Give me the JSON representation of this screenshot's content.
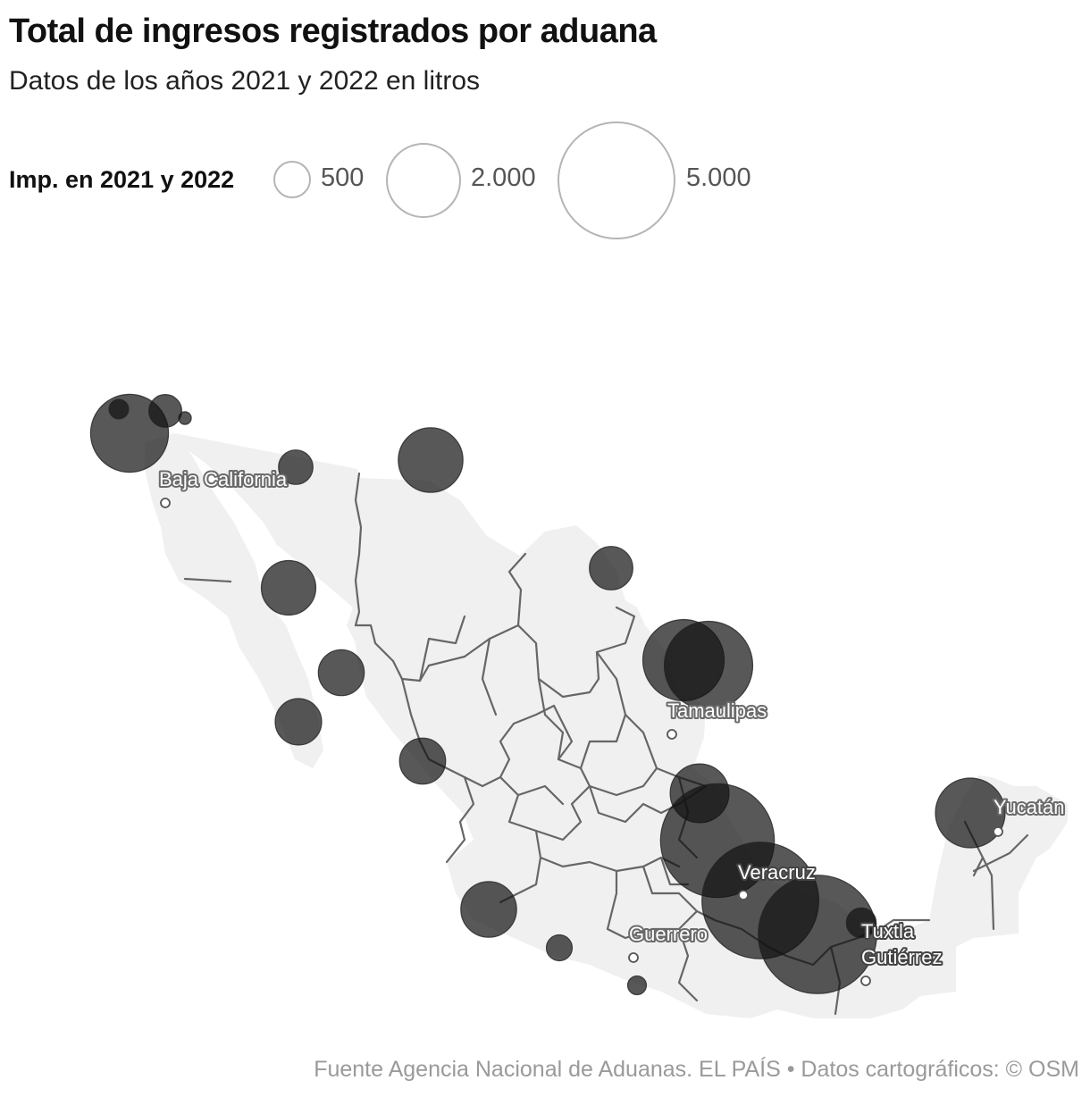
{
  "title": "Total de ingresos registrados por aduana",
  "subtitle": "Datos de los años 2021 y 2022 en litros",
  "legend": {
    "label": "Imp. en 2021 y 2022",
    "sizes": [
      {
        "label": "500",
        "value": 500
      },
      {
        "label": "2.000",
        "value": 2000
      },
      {
        "label": "5.000",
        "value": 5000
      }
    ]
  },
  "places": [
    {
      "name": "Baja California",
      "lines": [
        "Baja California"
      ]
    },
    {
      "name": "Tamaulipas",
      "lines": [
        "Tamaulipas"
      ]
    },
    {
      "name": "Yucatán",
      "lines": [
        "Yucatán"
      ]
    },
    {
      "name": "Veracruz",
      "lines": [
        "Veracruz"
      ]
    },
    {
      "name": "Guerrero",
      "lines": [
        "Guerrero"
      ]
    },
    {
      "name": "Tuxtla Gutiérrez",
      "lines": [
        "Tuxtla",
        "Gutiérrez"
      ]
    }
  ],
  "bubbles": [
    {
      "name": "aduana-tijuana",
      "value": 2250
    },
    {
      "name": "aduana-tijuana-inner",
      "value": 140
    },
    {
      "name": "aduana-tecate",
      "value": 400
    },
    {
      "name": "aduana-mexicali",
      "value": 60
    },
    {
      "name": "aduana-sonoyta",
      "value": 440
    },
    {
      "name": "aduana-ciudad-juarez",
      "value": 1550
    },
    {
      "name": "aduana-guaymas",
      "value": 1100
    },
    {
      "name": "aduana-piedras-negras",
      "value": 700
    },
    {
      "name": "aduana-la-paz",
      "value": 800
    },
    {
      "name": "aduana-mazatlan",
      "value": 780
    },
    {
      "name": "aduana-manzanillo-norte",
      "value": 790
    },
    {
      "name": "aduana-nuevo-laredo",
      "value": 2450
    },
    {
      "name": "aduana-monterrey",
      "value": 2900
    },
    {
      "name": "aduana-tampico",
      "value": 1280
    },
    {
      "name": "aduana-tuxpan",
      "value": 4800
    },
    {
      "name": "aduana-veracruz",
      "value": 5050
    },
    {
      "name": "aduana-coatzacoalcos",
      "value": 5200
    },
    {
      "name": "aduana-progreso",
      "value": 1800
    },
    {
      "name": "aduana-manzanillo",
      "value": 1150
    },
    {
      "name": "aduana-lazaro-cardenas",
      "value": 250
    },
    {
      "name": "aduana-acapulco",
      "value": 130
    },
    {
      "name": "aduana-salina-cruz",
      "value": 330
    }
  ],
  "source": "Fuente Agencia Nacional de Aduanas. EL PAÍS  • Datos cartográficos: © OSM"
}
